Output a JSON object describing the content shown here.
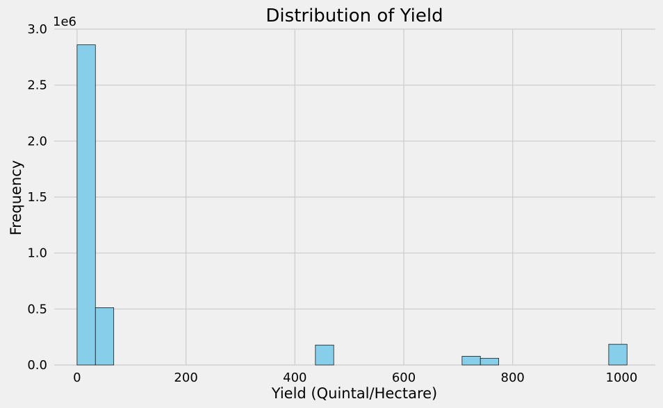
{
  "chart_data": {
    "type": "bar",
    "title": "Distribution of Yield",
    "xlabel": "Yield (Quintal/Hectare)",
    "ylabel": "Frequency",
    "y_offset_label": "1e6",
    "xlim": [
      -42,
      1062
    ],
    "ylim": [
      0,
      3000000
    ],
    "x_ticks": [
      0,
      200,
      400,
      600,
      800,
      1000
    ],
    "x_tick_labels": [
      "0",
      "200",
      "400",
      "600",
      "800",
      "1000"
    ],
    "y_ticks": [
      0,
      500000,
      1000000,
      1500000,
      2000000,
      2500000,
      3000000
    ],
    "y_tick_labels": [
      "0.0",
      "0.5",
      "1.0",
      "1.5",
      "2.0",
      "2.5",
      "3.0"
    ],
    "grid": true,
    "bin_width": 33.67,
    "bins": [
      {
        "start": 0,
        "end": 33.67,
        "value": 2860000
      },
      {
        "start": 33.67,
        "end": 67.33,
        "value": 512000
      },
      {
        "start": 437.67,
        "end": 471.33,
        "value": 178000
      },
      {
        "start": 707,
        "end": 740.67,
        "value": 78000
      },
      {
        "start": 740.67,
        "end": 774.33,
        "value": 60000
      },
      {
        "start": 976.33,
        "end": 1010,
        "value": 185000
      }
    ],
    "colors": {
      "bar_fill": "#87ceeb",
      "bar_edge": "#1a1a1a",
      "background": "#f0f0f0",
      "grid": "#cbcbcb"
    }
  }
}
